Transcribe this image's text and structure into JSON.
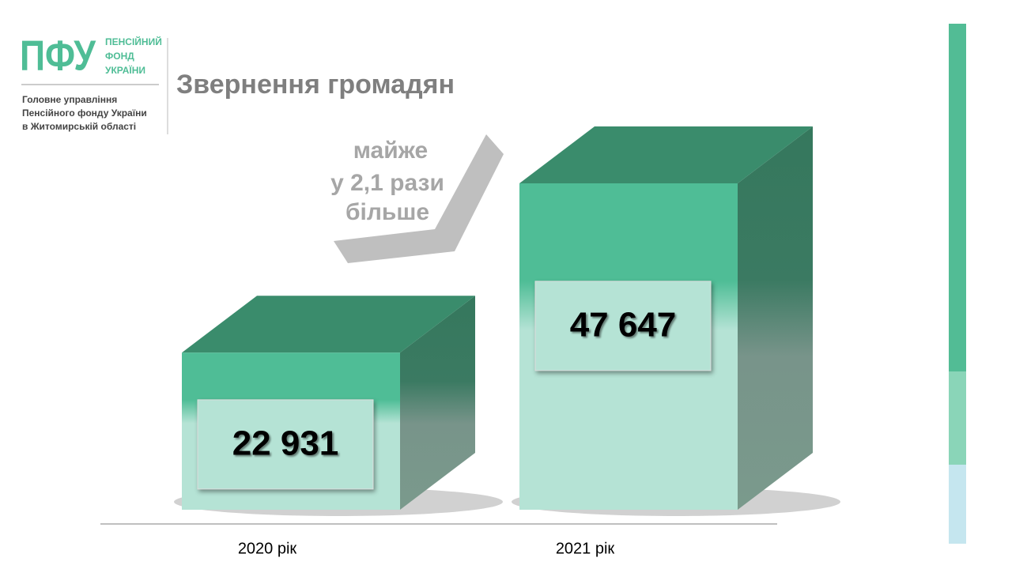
{
  "header": {
    "logo": "ПФУ",
    "org_lines": [
      "ПЕНСІЙНИЙ",
      "ФОНД",
      "УКРАЇНИ"
    ],
    "subtitle_lines": [
      "Головне управління",
      "Пенсійного фонду України",
      "в Житомирській області"
    ]
  },
  "chart_data": {
    "type": "bar3d",
    "title": "Звернення громадян",
    "categories": [
      "2020 рік",
      "2021 рік"
    ],
    "values": [
      22931,
      47647
    ],
    "value_labels": [
      "22 931",
      "47 647"
    ],
    "annotation": [
      "майже",
      "у 2,1 рази",
      "більше"
    ]
  }
}
